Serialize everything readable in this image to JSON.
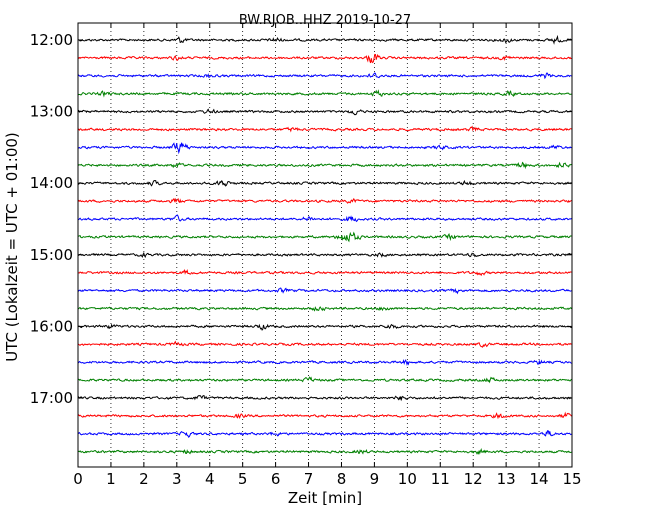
{
  "chart_data": {
    "type": "line",
    "title": "BW.RJOB..HHZ 2019-10-27",
    "xlabel": "Zeit  [min]",
    "ylabel": "UTC (Lokalzeit = UTC + 01:00)",
    "xlim": [
      0,
      15
    ],
    "x_ticks": [
      0,
      1,
      2,
      3,
      4,
      5,
      6,
      7,
      8,
      9,
      10,
      11,
      12,
      13,
      14,
      15
    ],
    "x_tick_labels": [
      "0",
      "1",
      "2",
      "3",
      "4",
      "5",
      "6",
      "7",
      "8",
      "9",
      "10",
      "11",
      "12",
      "13",
      "14",
      "15"
    ],
    "y_tick_labels": [
      {
        "label": "12:00",
        "trace_index": 0
      },
      {
        "label": "13:00",
        "trace_index": 4
      },
      {
        "label": "14:00",
        "trace_index": 8
      },
      {
        "label": "15:00",
        "trace_index": 12
      },
      {
        "label": "16:00",
        "trace_index": 16
      },
      {
        "label": "17:00",
        "trace_index": 20
      }
    ],
    "grid": {
      "vertical_dotted": true
    },
    "trace_interval_minutes": 15,
    "trace_start_times": [
      "12:00",
      "12:15",
      "12:30",
      "12:45",
      "13:00",
      "13:15",
      "13:30",
      "13:45",
      "14:00",
      "14:15",
      "14:30",
      "14:45",
      "15:00",
      "15:15",
      "15:30",
      "15:45",
      "16:00",
      "16:15",
      "16:30",
      "16:45",
      "17:00",
      "17:15",
      "17:30",
      "17:45"
    ],
    "colors": [
      "#000000",
      "#ff0000",
      "#0000ff",
      "#008000"
    ],
    "events": [
      [
        [
          3.1,
          0.8
        ],
        [
          6.0,
          0.6
        ],
        [
          13.0,
          0.6
        ],
        [
          14.5,
          0.9
        ]
      ],
      [
        [
          8.9,
          0.9
        ],
        [
          9.0,
          0.8
        ],
        [
          3.0,
          0.5
        ],
        [
          13.0,
          0.5
        ]
      ],
      [
        [
          9.0,
          0.7
        ],
        [
          14.2,
          0.6
        ],
        [
          4.0,
          0.5
        ]
      ],
      [
        [
          9.1,
          0.8
        ],
        [
          13.1,
          0.6
        ],
        [
          0.8,
          0.5
        ]
      ],
      [
        [
          8.4,
          0.7
        ],
        [
          4.0,
          0.5
        ]
      ],
      [
        [
          6.5,
          0.5
        ],
        [
          12.0,
          0.5
        ]
      ],
      [
        [
          3.0,
          1.2
        ],
        [
          3.2,
          1.0
        ],
        [
          11.0,
          0.5
        ],
        [
          14.5,
          0.5
        ]
      ],
      [
        [
          3.0,
          0.6
        ],
        [
          13.5,
          0.8
        ],
        [
          14.7,
          0.7
        ]
      ],
      [
        [
          4.4,
          1.0
        ],
        [
          2.3,
          0.5
        ],
        [
          11.8,
          0.6
        ]
      ],
      [
        [
          3.0,
          0.6
        ],
        [
          8.3,
          0.5
        ]
      ],
      [
        [
          3.0,
          0.7
        ],
        [
          8.3,
          0.9
        ],
        [
          7.0,
          0.6
        ]
      ],
      [
        [
          8.0,
          0.9
        ],
        [
          8.2,
          1.0
        ],
        [
          8.4,
          0.8
        ],
        [
          11.3,
          0.6
        ]
      ],
      [
        [
          2.0,
          0.4
        ],
        [
          9.2,
          0.4
        ],
        [
          12.0,
          0.5
        ]
      ],
      [
        [
          3.3,
          0.5
        ],
        [
          12.2,
          0.5
        ]
      ],
      [
        [
          6.2,
          0.5
        ],
        [
          11.5,
          0.5
        ]
      ],
      [
        [
          7.3,
          0.6
        ],
        [
          9.3,
          0.5
        ]
      ],
      [
        [
          5.6,
          0.8
        ],
        [
          1.0,
          0.5
        ],
        [
          9.5,
          0.6
        ]
      ],
      [
        [
          3.0,
          0.5
        ],
        [
          12.3,
          0.5
        ]
      ],
      [
        [
          10.0,
          0.6
        ],
        [
          14.0,
          0.5
        ]
      ],
      [
        [
          7.0,
          0.6
        ],
        [
          12.5,
          0.6
        ]
      ],
      [
        [
          3.7,
          0.6
        ],
        [
          9.8,
          0.5
        ]
      ],
      [
        [
          4.9,
          0.5
        ],
        [
          12.8,
          0.7
        ],
        [
          14.8,
          0.6
        ]
      ],
      [
        [
          3.3,
          0.8
        ],
        [
          14.3,
          0.9
        ],
        [
          6.0,
          0.5
        ]
      ],
      [
        [
          3.3,
          0.5
        ],
        [
          8.6,
          0.6
        ],
        [
          12.2,
          0.5
        ]
      ]
    ]
  }
}
